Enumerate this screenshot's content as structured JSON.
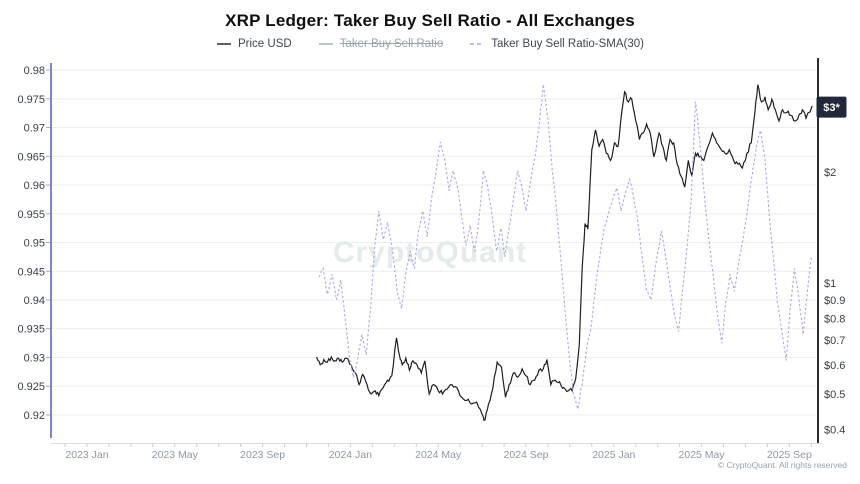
{
  "header": {
    "title": "XRP Ledger: Taker Buy Sell Ratio - All Exchanges"
  },
  "legend": [
    {
      "label": "Price USD",
      "color": "#33383d",
      "style": "solid",
      "disabled": false
    },
    {
      "label": "Taker Buy Sell Ratio",
      "color": "#aab3bb",
      "style": "solid",
      "disabled": true
    },
    {
      "label": "Taker Buy Sell Ratio-SMA(30)",
      "color": "#aaa5ee",
      "style": "dashed",
      "disabled": false
    }
  ],
  "watermark": "CryptoQuant",
  "copyright": "© CryptoQuant. All rights reserved",
  "chart_data": {
    "type": "line",
    "title": "XRP Ledger: Taker Buy Sell Ratio - All Exchanges",
    "grid": {
      "horizontal": true,
      "color": "#ededf2"
    },
    "x_axis": {
      "line_color": "#d9dee3",
      "tick_labels": [
        [
          "2023 Jan",
          "2023-01-01"
        ],
        [
          "2023 May",
          "2023-05-01"
        ],
        [
          "2023 Sep",
          "2023-09-01"
        ],
        [
          "2024 Jan",
          "2024-01-01"
        ],
        [
          "2024 May",
          "2024-05-01"
        ],
        [
          "2024 Sep",
          "2024-09-01"
        ],
        [
          "2025 Jan",
          "2025-01-01"
        ],
        [
          "2025 May",
          "2025-05-01"
        ],
        [
          "2025 Sep",
          "2025-09-01"
        ]
      ]
    },
    "left_axis": {
      "title": "Taker Buy Sell Ratio-SMA(30)",
      "axis_color": "#5e63c4",
      "ticks": [
        0.92,
        0.925,
        0.93,
        0.935,
        0.94,
        0.945,
        0.95,
        0.955,
        0.96,
        0.965,
        0.97,
        0.975,
        0.98
      ],
      "range": [
        0.9145,
        0.981
      ]
    },
    "right_axis": {
      "title": "Price USD",
      "scale": "log",
      "axis_color": "#2e2e2e",
      "ticks": [
        [
          "$2",
          2
        ],
        [
          "$1",
          1
        ],
        [
          "$0.9",
          0.9
        ],
        [
          "$0.8",
          0.8
        ],
        [
          "$0.7",
          0.7
        ],
        [
          "$0.6",
          0.6
        ],
        [
          "$0.5",
          0.5
        ],
        [
          "$0.4",
          0.4
        ]
      ],
      "last_price_badge": {
        "label": "$3*",
        "value": 3.0,
        "bg": "#202839",
        "fg": "#ffffff"
      }
    },
    "series": [
      {
        "name": "Price USD",
        "axis": "right",
        "color": "#1f1f1f",
        "line_style": "solid",
        "visible": true,
        "points": [
          [
            "2023-11-15",
            0.63
          ],
          [
            "2023-11-20",
            0.6
          ],
          [
            "2023-11-25",
            0.62
          ],
          [
            "2023-11-30",
            0.61
          ],
          [
            "2023-12-05",
            0.63
          ],
          [
            "2023-12-10",
            0.615
          ],
          [
            "2023-12-15",
            0.625
          ],
          [
            "2023-12-20",
            0.61
          ],
          [
            "2023-12-26",
            0.625
          ],
          [
            "2024-01-02",
            0.6
          ],
          [
            "2024-01-08",
            0.57
          ],
          [
            "2024-01-13",
            0.53
          ],
          [
            "2024-01-18",
            0.565
          ],
          [
            "2024-01-24",
            0.53
          ],
          [
            "2024-01-30",
            0.5
          ],
          [
            "2024-02-05",
            0.51
          ],
          [
            "2024-02-10",
            0.495
          ],
          [
            "2024-02-16",
            0.52
          ],
          [
            "2024-02-22",
            0.545
          ],
          [
            "2024-02-28",
            0.56
          ],
          [
            "2024-03-04",
            0.71
          ],
          [
            "2024-03-08",
            0.64
          ],
          [
            "2024-03-12",
            0.6
          ],
          [
            "2024-03-17",
            0.625
          ],
          [
            "2024-03-22",
            0.58
          ],
          [
            "2024-03-27",
            0.615
          ],
          [
            "2024-04-02",
            0.6
          ],
          [
            "2024-04-08",
            0.57
          ],
          [
            "2024-04-13",
            0.615
          ],
          [
            "2024-04-19",
            0.5
          ],
          [
            "2024-04-25",
            0.53
          ],
          [
            "2024-05-01",
            0.51
          ],
          [
            "2024-05-07",
            0.5
          ],
          [
            "2024-05-13",
            0.515
          ],
          [
            "2024-05-20",
            0.53
          ],
          [
            "2024-05-27",
            0.52
          ],
          [
            "2024-06-03",
            0.49
          ],
          [
            "2024-06-10",
            0.48
          ],
          [
            "2024-06-17",
            0.47
          ],
          [
            "2024-06-24",
            0.475
          ],
          [
            "2024-07-01",
            0.44
          ],
          [
            "2024-07-05",
            0.425
          ],
          [
            "2024-07-10",
            0.47
          ],
          [
            "2024-07-16",
            0.52
          ],
          [
            "2024-07-22",
            0.61
          ],
          [
            "2024-07-28",
            0.59
          ],
          [
            "2024-08-03",
            0.49
          ],
          [
            "2024-08-08",
            0.53
          ],
          [
            "2024-08-14",
            0.57
          ],
          [
            "2024-08-20",
            0.555
          ],
          [
            "2024-08-26",
            0.585
          ],
          [
            "2024-09-01",
            0.56
          ],
          [
            "2024-09-07",
            0.53
          ],
          [
            "2024-09-13",
            0.545
          ],
          [
            "2024-09-19",
            0.58
          ],
          [
            "2024-09-25",
            0.585
          ],
          [
            "2024-09-30",
            0.62
          ],
          [
            "2024-10-05",
            0.53
          ],
          [
            "2024-10-11",
            0.545
          ],
          [
            "2024-10-17",
            0.54
          ],
          [
            "2024-10-23",
            0.52
          ],
          [
            "2024-10-29",
            0.51
          ],
          [
            "2024-11-04",
            0.51
          ],
          [
            "2024-11-09",
            0.55
          ],
          [
            "2024-11-14",
            0.68
          ],
          [
            "2024-11-18",
            1.1
          ],
          [
            "2024-11-22",
            1.45
          ],
          [
            "2024-11-26",
            1.4
          ],
          [
            "2024-12-01",
            2.3
          ],
          [
            "2024-12-06",
            2.6
          ],
          [
            "2024-12-11",
            2.35
          ],
          [
            "2024-12-16",
            2.45
          ],
          [
            "2024-12-21",
            2.25
          ],
          [
            "2024-12-27",
            2.15
          ],
          [
            "2025-01-02",
            2.4
          ],
          [
            "2025-01-07",
            2.35
          ],
          [
            "2025-01-12",
            2.9
          ],
          [
            "2025-01-16",
            3.3
          ],
          [
            "2025-01-21",
            3.1
          ],
          [
            "2025-01-26",
            3.15
          ],
          [
            "2025-02-01",
            2.75
          ],
          [
            "2025-02-06",
            2.45
          ],
          [
            "2025-02-11",
            2.55
          ],
          [
            "2025-02-16",
            2.7
          ],
          [
            "2025-02-21",
            2.55
          ],
          [
            "2025-02-26",
            2.2
          ],
          [
            "2025-03-03",
            2.55
          ],
          [
            "2025-03-08",
            2.35
          ],
          [
            "2025-03-13",
            2.15
          ],
          [
            "2025-03-18",
            2.45
          ],
          [
            "2025-03-23",
            2.4
          ],
          [
            "2025-03-28",
            2.1
          ],
          [
            "2025-04-03",
            1.95
          ],
          [
            "2025-04-08",
            1.82
          ],
          [
            "2025-04-13",
            2.15
          ],
          [
            "2025-04-18",
            1.95
          ],
          [
            "2025-04-23",
            2.25
          ],
          [
            "2025-04-28",
            2.2
          ],
          [
            "2025-05-04",
            2.15
          ],
          [
            "2025-05-10",
            2.35
          ],
          [
            "2025-05-16",
            2.55
          ],
          [
            "2025-05-22",
            2.4
          ],
          [
            "2025-05-28",
            2.3
          ],
          [
            "2025-06-03",
            2.25
          ],
          [
            "2025-06-09",
            2.3
          ],
          [
            "2025-06-15",
            2.15
          ],
          [
            "2025-06-21",
            2.1
          ],
          [
            "2025-06-27",
            2.05
          ],
          [
            "2025-07-03",
            2.25
          ],
          [
            "2025-07-09",
            2.4
          ],
          [
            "2025-07-14",
            2.9
          ],
          [
            "2025-07-18",
            3.45
          ],
          [
            "2025-07-23",
            3.1
          ],
          [
            "2025-07-28",
            3.2
          ],
          [
            "2025-08-02",
            2.95
          ],
          [
            "2025-08-07",
            3.15
          ],
          [
            "2025-08-12",
            2.95
          ],
          [
            "2025-08-17",
            2.75
          ],
          [
            "2025-08-22",
            2.95
          ],
          [
            "2025-08-28",
            2.9
          ],
          [
            "2025-09-03",
            2.85
          ],
          [
            "2025-09-09",
            2.75
          ],
          [
            "2025-09-14",
            2.85
          ],
          [
            "2025-09-19",
            2.95
          ],
          [
            "2025-09-24",
            2.8
          ],
          [
            "2025-10-02",
            3.02
          ]
        ]
      },
      {
        "name": "Taker Buy Sell Ratio",
        "axis": "left",
        "color": "#9ca6b0",
        "line_style": "solid",
        "visible": false,
        "points": []
      },
      {
        "name": "Taker Buy Sell Ratio-SMA(30)",
        "axis": "left",
        "color": "#aaa5ee",
        "line_style": "dashed",
        "visible": true,
        "points": [
          [
            "2023-11-18",
            0.944
          ],
          [
            "2023-11-24",
            0.9455
          ],
          [
            "2023-11-30",
            0.941
          ],
          [
            "2023-12-06",
            0.9445
          ],
          [
            "2023-12-12",
            0.94
          ],
          [
            "2023-12-18",
            0.9435
          ],
          [
            "2023-12-24",
            0.937
          ],
          [
            "2023-12-30",
            0.93
          ],
          [
            "2024-01-05",
            0.9265
          ],
          [
            "2024-01-11",
            0.9295
          ],
          [
            "2024-01-17",
            0.934
          ],
          [
            "2024-01-23",
            0.9305
          ],
          [
            "2024-01-29",
            0.9385
          ],
          [
            "2024-02-04",
            0.949
          ],
          [
            "2024-02-10",
            0.9555
          ],
          [
            "2024-02-16",
            0.9505
          ],
          [
            "2024-02-22",
            0.9535
          ],
          [
            "2024-02-28",
            0.9495
          ],
          [
            "2024-03-05",
            0.9415
          ],
          [
            "2024-03-11",
            0.9385
          ],
          [
            "2024-03-17",
            0.9445
          ],
          [
            "2024-03-23",
            0.9485
          ],
          [
            "2024-03-29",
            0.9455
          ],
          [
            "2024-04-04",
            0.952
          ],
          [
            "2024-04-10",
            0.9555
          ],
          [
            "2024-04-16",
            0.951
          ],
          [
            "2024-04-22",
            0.9575
          ],
          [
            "2024-04-28",
            0.962
          ],
          [
            "2024-05-04",
            0.9675
          ],
          [
            "2024-05-10",
            0.9645
          ],
          [
            "2024-05-16",
            0.959
          ],
          [
            "2024-05-22",
            0.9625
          ],
          [
            "2024-05-28",
            0.9595
          ],
          [
            "2024-06-03",
            0.9545
          ],
          [
            "2024-06-09",
            0.9495
          ],
          [
            "2024-06-15",
            0.953
          ],
          [
            "2024-06-21",
            0.9485
          ],
          [
            "2024-06-27",
            0.954
          ],
          [
            "2024-07-03",
            0.9625
          ],
          [
            "2024-07-09",
            0.9595
          ],
          [
            "2024-07-15",
            0.9545
          ],
          [
            "2024-07-21",
            0.9485
          ],
          [
            "2024-07-27",
            0.9525
          ],
          [
            "2024-08-02",
            0.9475
          ],
          [
            "2024-08-08",
            0.9525
          ],
          [
            "2024-08-14",
            0.9575
          ],
          [
            "2024-08-20",
            0.9625
          ],
          [
            "2024-08-26",
            0.9595
          ],
          [
            "2024-09-01",
            0.9555
          ],
          [
            "2024-09-07",
            0.9605
          ],
          [
            "2024-09-13",
            0.9645
          ],
          [
            "2024-09-19",
            0.97
          ],
          [
            "2024-09-25",
            0.9775
          ],
          [
            "2024-10-01",
            0.9715
          ],
          [
            "2024-10-07",
            0.9625
          ],
          [
            "2024-10-13",
            0.9555
          ],
          [
            "2024-10-19",
            0.947
          ],
          [
            "2024-10-25",
            0.9375
          ],
          [
            "2024-10-31",
            0.9295
          ],
          [
            "2024-11-06",
            0.9235
          ],
          [
            "2024-11-12",
            0.921
          ],
          [
            "2024-11-18",
            0.9255
          ],
          [
            "2024-11-24",
            0.9315
          ],
          [
            "2024-11-30",
            0.935
          ],
          [
            "2024-12-06",
            0.942
          ],
          [
            "2024-12-12",
            0.9475
          ],
          [
            "2024-12-18",
            0.9525
          ],
          [
            "2024-12-24",
            0.955
          ],
          [
            "2024-12-30",
            0.9575
          ],
          [
            "2025-01-05",
            0.9595
          ],
          [
            "2025-01-11",
            0.9555
          ],
          [
            "2025-01-17",
            0.9585
          ],
          [
            "2025-01-23",
            0.961
          ],
          [
            "2025-01-29",
            0.9575
          ],
          [
            "2025-02-04",
            0.9535
          ],
          [
            "2025-02-10",
            0.9475
          ],
          [
            "2025-02-16",
            0.9415
          ],
          [
            "2025-02-22",
            0.94
          ],
          [
            "2025-02-28",
            0.9455
          ],
          [
            "2025-03-06",
            0.952
          ],
          [
            "2025-03-12",
            0.9475
          ],
          [
            "2025-03-18",
            0.9425
          ],
          [
            "2025-03-24",
            0.9375
          ],
          [
            "2025-03-30",
            0.9345
          ],
          [
            "2025-04-05",
            0.9415
          ],
          [
            "2025-04-11",
            0.949
          ],
          [
            "2025-04-17",
            0.9575
          ],
          [
            "2025-04-23",
            0.9745
          ],
          [
            "2025-04-29",
            0.9675
          ],
          [
            "2025-05-05",
            0.958
          ],
          [
            "2025-05-11",
            0.9505
          ],
          [
            "2025-05-17",
            0.9445
          ],
          [
            "2025-05-23",
            0.9375
          ],
          [
            "2025-05-29",
            0.9325
          ],
          [
            "2025-06-04",
            0.9395
          ],
          [
            "2025-06-10",
            0.9445
          ],
          [
            "2025-06-16",
            0.9415
          ],
          [
            "2025-06-22",
            0.9465
          ],
          [
            "2025-06-28",
            0.9505
          ],
          [
            "2025-07-04",
            0.956
          ],
          [
            "2025-07-10",
            0.9615
          ],
          [
            "2025-07-16",
            0.9665
          ],
          [
            "2025-07-22",
            0.9695
          ],
          [
            "2025-07-28",
            0.9645
          ],
          [
            "2025-08-03",
            0.9555
          ],
          [
            "2025-08-09",
            0.9475
          ],
          [
            "2025-08-15",
            0.9395
          ],
          [
            "2025-08-21",
            0.9345
          ],
          [
            "2025-08-27",
            0.9295
          ],
          [
            "2025-09-02",
            0.9385
          ],
          [
            "2025-09-08",
            0.9455
          ],
          [
            "2025-09-14",
            0.9405
          ],
          [
            "2025-09-20",
            0.934
          ],
          [
            "2025-09-26",
            0.9415
          ],
          [
            "2025-10-01",
            0.9475
          ]
        ]
      }
    ]
  }
}
